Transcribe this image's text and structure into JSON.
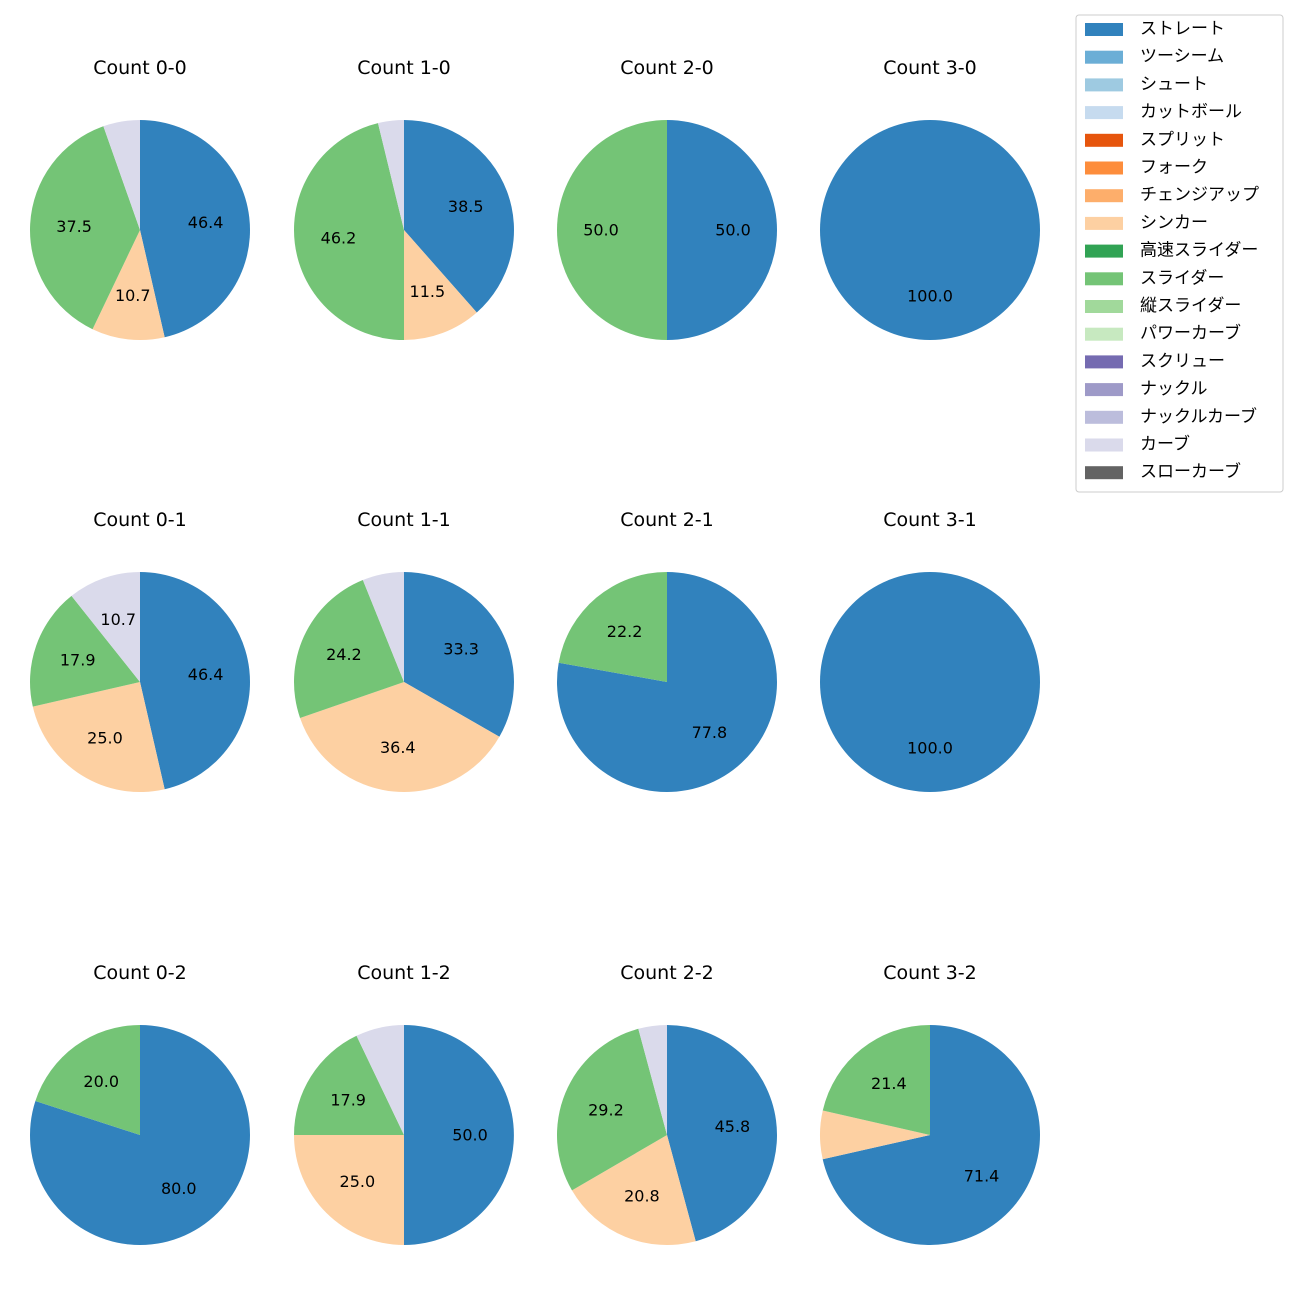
{
  "legend": {
    "entries": [
      {
        "label": "ストレート",
        "color": "#3182bd"
      },
      {
        "label": "ツーシーム",
        "color": "#6baed6"
      },
      {
        "label": "シュート",
        "color": "#9ecae1"
      },
      {
        "label": "カットボール",
        "color": "#c6dbef"
      },
      {
        "label": "スプリット",
        "color": "#e6550d"
      },
      {
        "label": "フォーク",
        "color": "#fd8d3c"
      },
      {
        "label": "チェンジアップ",
        "color": "#fdae6b"
      },
      {
        "label": "シンカー",
        "color": "#fdd0a2"
      },
      {
        "label": "高速スライダー",
        "color": "#31a354"
      },
      {
        "label": "スライダー",
        "color": "#74c476"
      },
      {
        "label": "縦スライダー",
        "color": "#a1d99b"
      },
      {
        "label": "パワーカーブ",
        "color": "#c7e9c0"
      },
      {
        "label": "スクリュー",
        "color": "#756bb1"
      },
      {
        "label": "ナックル",
        "color": "#9e9ac8"
      },
      {
        "label": "ナックルカーブ",
        "color": "#bcbddc"
      },
      {
        "label": "カーブ",
        "color": "#dadaeb"
      },
      {
        "label": "スローカーブ",
        "color": "#636363"
      }
    ]
  },
  "chart_data": [
    {
      "type": "pie",
      "title": "Count 0-0",
      "start_angle_deg": 90,
      "slices": [
        {
          "category": "ストレート",
          "value": 46.4,
          "label": "46.4"
        },
        {
          "category": "シンカー",
          "value": 10.7,
          "label": "10.7"
        },
        {
          "category": "スライダー",
          "value": 37.5,
          "label": "37.5"
        },
        {
          "category": "カーブ",
          "value": 5.4,
          "label": ""
        }
      ]
    },
    {
      "type": "pie",
      "title": "Count 1-0",
      "start_angle_deg": 90,
      "slices": [
        {
          "category": "ストレート",
          "value": 38.5,
          "label": "38.5"
        },
        {
          "category": "シンカー",
          "value": 11.5,
          "label": "11.5"
        },
        {
          "category": "スライダー",
          "value": 46.2,
          "label": "46.2"
        },
        {
          "category": "カーブ",
          "value": 3.8,
          "label": ""
        }
      ]
    },
    {
      "type": "pie",
      "title": "Count 2-0",
      "start_angle_deg": 90,
      "slices": [
        {
          "category": "ストレート",
          "value": 50.0,
          "label": "50.0"
        },
        {
          "category": "スライダー",
          "value": 50.0,
          "label": "50.0"
        }
      ]
    },
    {
      "type": "pie",
      "title": "Count 3-0",
      "start_angle_deg": 90,
      "slices": [
        {
          "category": "ストレート",
          "value": 100.0,
          "label": "100.0"
        }
      ]
    },
    {
      "type": "pie",
      "title": "Count 0-1",
      "start_angle_deg": 90,
      "slices": [
        {
          "category": "ストレート",
          "value": 46.4,
          "label": "46.4"
        },
        {
          "category": "シンカー",
          "value": 25.0,
          "label": "25.0"
        },
        {
          "category": "スライダー",
          "value": 17.9,
          "label": "17.9"
        },
        {
          "category": "カーブ",
          "value": 10.7,
          "label": "10.7"
        }
      ]
    },
    {
      "type": "pie",
      "title": "Count 1-1",
      "start_angle_deg": 90,
      "slices": [
        {
          "category": "ストレート",
          "value": 33.3,
          "label": "33.3"
        },
        {
          "category": "シンカー",
          "value": 36.4,
          "label": "36.4"
        },
        {
          "category": "スライダー",
          "value": 24.2,
          "label": "24.2"
        },
        {
          "category": "カーブ",
          "value": 6.1,
          "label": ""
        }
      ]
    },
    {
      "type": "pie",
      "title": "Count 2-1",
      "start_angle_deg": 90,
      "slices": [
        {
          "category": "ストレート",
          "value": 77.8,
          "label": "77.8"
        },
        {
          "category": "スライダー",
          "value": 22.2,
          "label": "22.2"
        }
      ]
    },
    {
      "type": "pie",
      "title": "Count 3-1",
      "start_angle_deg": 90,
      "slices": [
        {
          "category": "ストレート",
          "value": 100.0,
          "label": "100.0"
        }
      ]
    },
    {
      "type": "pie",
      "title": "Count 0-2",
      "start_angle_deg": 90,
      "slices": [
        {
          "category": "ストレート",
          "value": 80.0,
          "label": "80.0"
        },
        {
          "category": "スライダー",
          "value": 20.0,
          "label": "20.0"
        }
      ]
    },
    {
      "type": "pie",
      "title": "Count 1-2",
      "start_angle_deg": 90,
      "slices": [
        {
          "category": "ストレート",
          "value": 50.0,
          "label": "50.0"
        },
        {
          "category": "シンカー",
          "value": 25.0,
          "label": "25.0"
        },
        {
          "category": "スライダー",
          "value": 17.9,
          "label": "17.9"
        },
        {
          "category": "カーブ",
          "value": 7.1,
          "label": ""
        }
      ]
    },
    {
      "type": "pie",
      "title": "Count 2-2",
      "start_angle_deg": 90,
      "slices": [
        {
          "category": "ストレート",
          "value": 45.8,
          "label": "45.8"
        },
        {
          "category": "シンカー",
          "value": 20.8,
          "label": "20.8"
        },
        {
          "category": "スライダー",
          "value": 29.2,
          "label": "29.2"
        },
        {
          "category": "カーブ",
          "value": 4.2,
          "label": ""
        }
      ]
    },
    {
      "type": "pie",
      "title": "Count 3-2",
      "start_angle_deg": 90,
      "slices": [
        {
          "category": "ストレート",
          "value": 71.4,
          "label": "71.4"
        },
        {
          "category": "シンカー",
          "value": 7.1,
          "label": ""
        },
        {
          "category": "スライダー",
          "value": 21.4,
          "label": "21.4"
        }
      ]
    }
  ]
}
